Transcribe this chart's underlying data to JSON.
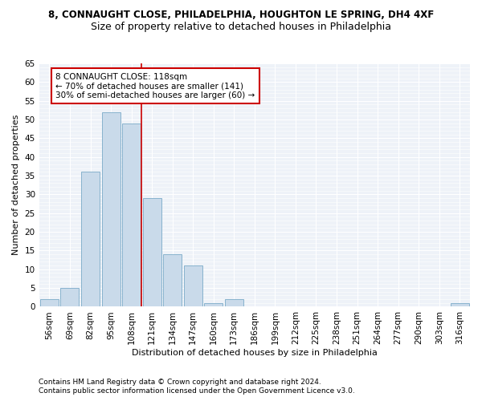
{
  "title1": "8, CONNAUGHT CLOSE, PHILADELPHIA, HOUGHTON LE SPRING, DH4 4XF",
  "title2": "Size of property relative to detached houses in Philadelphia",
  "xlabel": "Distribution of detached houses by size in Philadelphia",
  "ylabel": "Number of detached properties",
  "categories": [
    "56sqm",
    "69sqm",
    "82sqm",
    "95sqm",
    "108sqm",
    "121sqm",
    "134sqm",
    "147sqm",
    "160sqm",
    "173sqm",
    "186sqm",
    "199sqm",
    "212sqm",
    "225sqm",
    "238sqm",
    "251sqm",
    "264sqm",
    "277sqm",
    "290sqm",
    "303sqm",
    "316sqm"
  ],
  "values": [
    2,
    5,
    36,
    52,
    49,
    29,
    14,
    11,
    1,
    2,
    0,
    0,
    0,
    0,
    0,
    0,
    0,
    0,
    0,
    0,
    1
  ],
  "bar_color": "#c9daea",
  "bar_edge_color": "#7aaac8",
  "vline_x": 4.5,
  "vline_color": "#cc0000",
  "annotation_box_text": "8 CONNAUGHT CLOSE: 118sqm\n← 70% of detached houses are smaller (141)\n30% of semi-detached houses are larger (60) →",
  "annotation_box_color": "#cc0000",
  "ylim": [
    0,
    65
  ],
  "yticks": [
    0,
    5,
    10,
    15,
    20,
    25,
    30,
    35,
    40,
    45,
    50,
    55,
    60,
    65
  ],
  "footer1": "Contains HM Land Registry data © Crown copyright and database right 2024.",
  "footer2": "Contains public sector information licensed under the Open Government Licence v3.0.",
  "background_color": "#ffffff",
  "plot_background_color": "#eef2f8",
  "title1_fontsize": 8.5,
  "title2_fontsize": 9,
  "axis_label_fontsize": 8,
  "tick_fontsize": 7.5,
  "annotation_fontsize": 7.5,
  "footer_fontsize": 6.5
}
